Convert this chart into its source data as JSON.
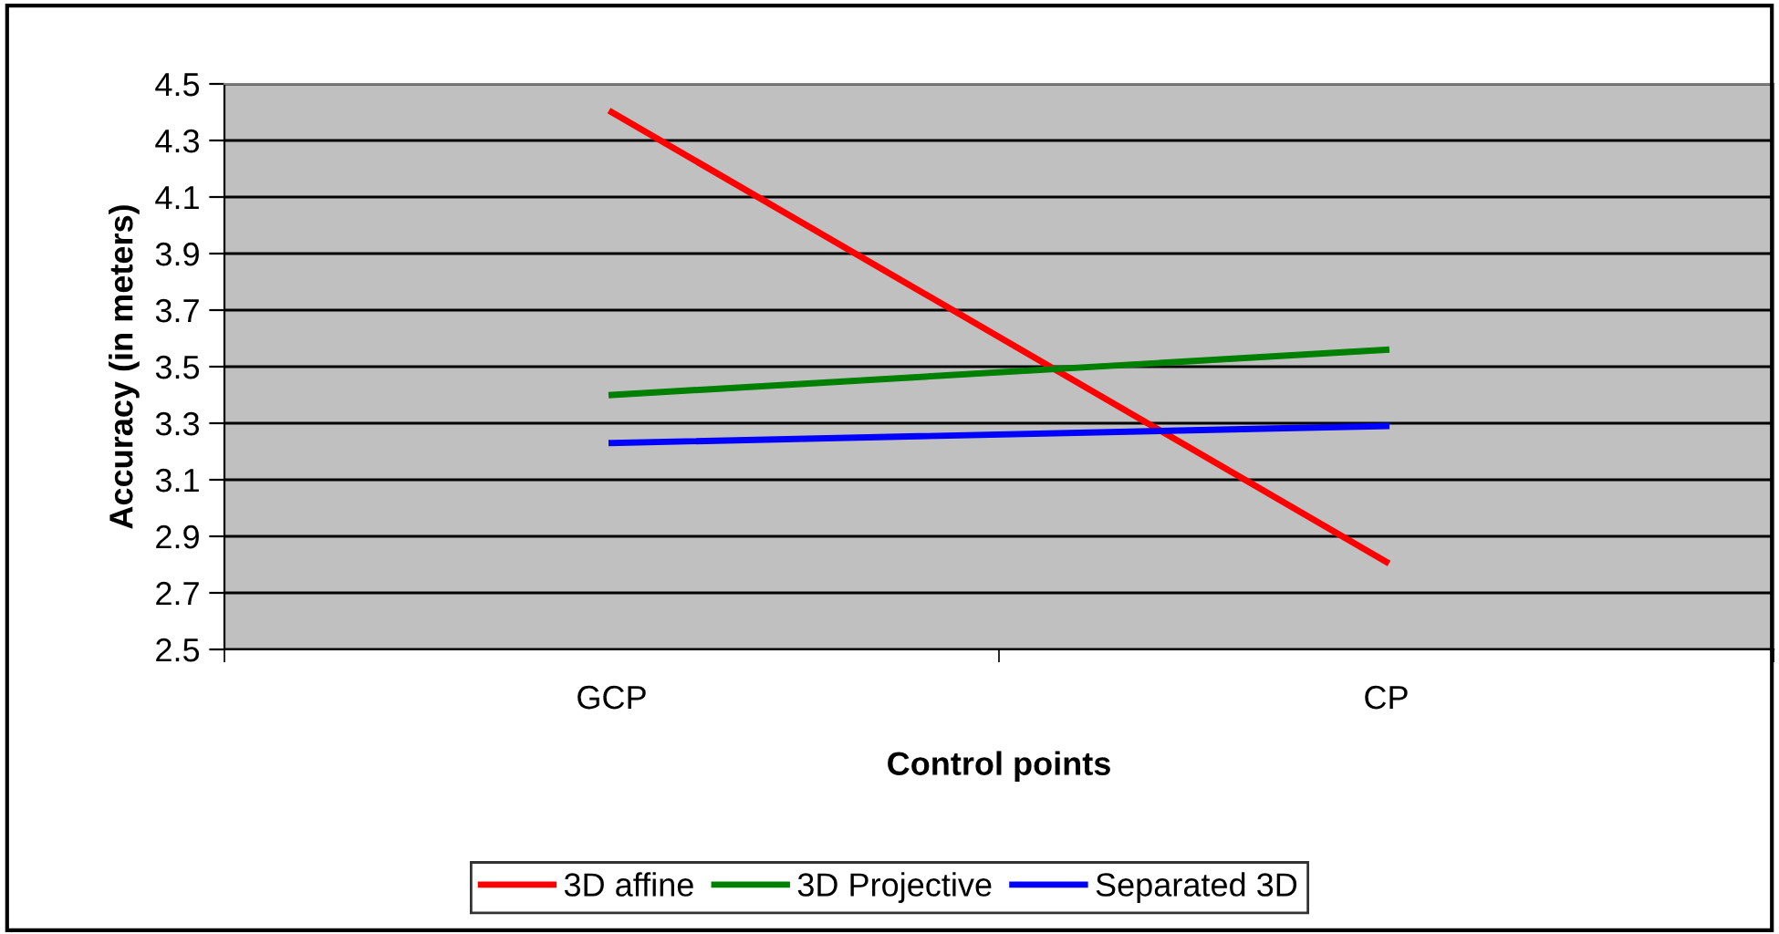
{
  "chart_data": {
    "type": "line",
    "xlabel": "Control points",
    "ylabel": "Accuracy (in meters)",
    "categories": [
      "GCP",
      "CP"
    ],
    "series": [
      {
        "name": "3D affine",
        "color": "#ff0000",
        "values": [
          4.4,
          2.81
        ]
      },
      {
        "name": "3D Projective",
        "color": "#008000",
        "values": [
          3.4,
          3.56
        ]
      },
      {
        "name": "Separated 3D",
        "color": "#0000ff",
        "values": [
          3.23,
          3.29
        ]
      }
    ],
    "ylim": [
      2.5,
      4.5
    ],
    "yticks": [
      2.5,
      2.7,
      2.9,
      3.1,
      3.3,
      3.5,
      3.7,
      3.9,
      4.1,
      4.3,
      4.5
    ],
    "grid": "y",
    "legend": "bottom",
    "marker": "none",
    "line_style": "solid"
  }
}
